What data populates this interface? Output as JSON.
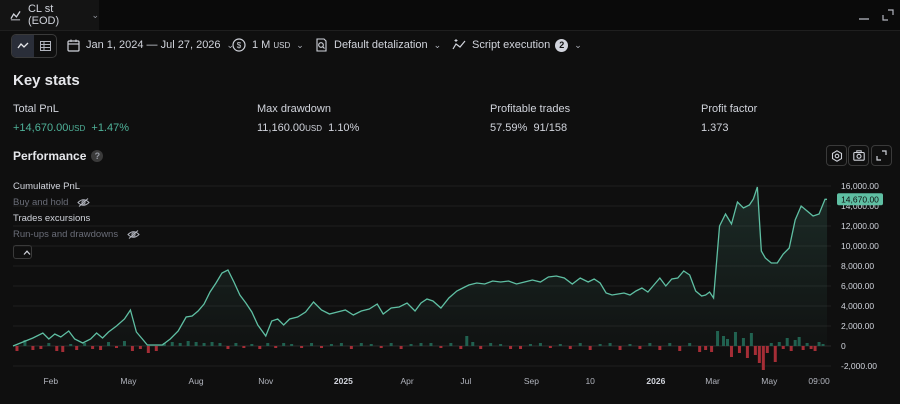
{
  "tab": {
    "title": "CL st (EOD)",
    "icon": "line-chart-icon"
  },
  "toolbar": {
    "date_range": "Jan 1, 2024 — Jul 27, 2026",
    "capital": "1 M",
    "capital_currency": "USD",
    "detalization": "Default detalization",
    "script_execution": "Script execution",
    "script_badge": "2"
  },
  "key_stats": {
    "title": "Key stats",
    "items": [
      {
        "label": "Total PnL",
        "value": "+14,670.00",
        "currency": "USD",
        "extra": "+1.47%"
      },
      {
        "label": "Max drawdown",
        "value": "11,160.00",
        "currency": "USD",
        "extra": "1.10%"
      },
      {
        "label": "Profitable trades",
        "value": "57.59%",
        "currency": "",
        "extra": "91/158"
      },
      {
        "label": "Profit factor",
        "value": "1.373",
        "currency": "",
        "extra": ""
      }
    ]
  },
  "performance": {
    "title": "Performance",
    "legend": [
      {
        "label": "Cumulative PnL",
        "active": true
      },
      {
        "label": "Buy and hold",
        "active": false
      },
      {
        "label": "Trades excursions",
        "active": true
      },
      {
        "label": "Run-ups and drawdowns",
        "active": false
      }
    ]
  },
  "colors": {
    "line": "#5fbfa3",
    "pos_bar": "#1f5f4e",
    "neg_bar": "#a52d36",
    "label_bg": "#5fbfa3"
  },
  "chart_data": {
    "type": "area",
    "ylim": [
      -3000,
      17000
    ],
    "yticks": [
      16000,
      14000,
      12000,
      10000,
      8000,
      6000,
      4000,
      2000,
      0,
      -2000
    ],
    "ytick_labels": [
      "16,000.00",
      "14,000.00",
      "12,000.00",
      "10,000.00",
      "8,000.00",
      "6,000.00",
      "4,000.00",
      "2,000.00",
      "0",
      "-2,000.00"
    ],
    "last_value": 14670,
    "last_value_label": "14,670.00",
    "xlim": [
      0,
      822
    ],
    "xticks": [
      {
        "x": 38,
        "label": "Feb",
        "year": false
      },
      {
        "x": 116,
        "label": "May",
        "year": false
      },
      {
        "x": 184,
        "label": "Aug",
        "year": false
      },
      {
        "x": 254,
        "label": "Nov",
        "year": false
      },
      {
        "x": 332,
        "label": "2025",
        "year": true
      },
      {
        "x": 396,
        "label": "Apr",
        "year": false
      },
      {
        "x": 455,
        "label": "Jul",
        "year": false
      },
      {
        "x": 521,
        "label": "Sep",
        "year": false
      },
      {
        "x": 580,
        "label": "10",
        "year": false
      },
      {
        "x": 646,
        "label": "2026",
        "year": true
      },
      {
        "x": 703,
        "label": "Mar",
        "year": false
      },
      {
        "x": 760,
        "label": "May",
        "year": false
      },
      {
        "x": 810,
        "label": "09:00",
        "year": false
      }
    ],
    "series": [
      {
        "name": "Cumulative PnL",
        "x": [
          0,
          10,
          20,
          30,
          36,
          42,
          48,
          56,
          62,
          70,
          78,
          84,
          90,
          96,
          104,
          112,
          118,
          124,
          130,
          135,
          142,
          150,
          158,
          166,
          174,
          180,
          186,
          192,
          198,
          204,
          210,
          216,
          222,
          228,
          234,
          240,
          246,
          254,
          260,
          266,
          272,
          278,
          286,
          294,
          302,
          310,
          318,
          326,
          334,
          342,
          350,
          358,
          366,
          372,
          380,
          388,
          396,
          404,
          410,
          416,
          422,
          430,
          438,
          446,
          452,
          458,
          466,
          474,
          482,
          490,
          498,
          506,
          514,
          522,
          530,
          538,
          546,
          554,
          562,
          570,
          578,
          584,
          590,
          596,
          602,
          608,
          614,
          620,
          626,
          632,
          638,
          644,
          650,
          656,
          662,
          668,
          674,
          680,
          686,
          692,
          696,
          700,
          704,
          710,
          716,
          722,
          728,
          734,
          740,
          744,
          748,
          752,
          756,
          762,
          768,
          774,
          780,
          786,
          792,
          798,
          804,
          810,
          816,
          818
        ],
        "y": [
          0,
          400,
          800,
          1300,
          700,
          1200,
          900,
          1500,
          700,
          300,
          700,
          1300,
          800,
          1400,
          2000,
          2700,
          3600,
          1400,
          700,
          100,
          100,
          100,
          700,
          1500,
          2900,
          3000,
          3500,
          4200,
          5400,
          6300,
          7300,
          7600,
          6400,
          5100,
          4300,
          3400,
          2100,
          1000,
          2500,
          2700,
          2100,
          2700,
          2900,
          3400,
          4400,
          3600,
          3200,
          3400,
          3600,
          3100,
          3500,
          3700,
          4200,
          3200,
          3800,
          3900,
          4300,
          3500,
          4300,
          4700,
          4500,
          3800,
          4800,
          5500,
          5800,
          6100,
          6300,
          6200,
          6500,
          6400,
          6500,
          6200,
          6400,
          6600,
          6400,
          6900,
          7000,
          6800,
          6200,
          6800,
          6400,
          6700,
          6300,
          5300,
          5100,
          5200,
          5300,
          5100,
          5500,
          5800,
          5400,
          6100,
          6800,
          6000,
          6700,
          6800,
          7500,
          7100,
          5500,
          5000,
          5100,
          5400,
          4800,
          12000,
          13200,
          12200,
          14400,
          13800,
          14100,
          14700,
          15900,
          9500,
          8800,
          8300,
          8300,
          9200,
          9800,
          12600,
          14000,
          13500,
          13000,
          13200,
          14670,
          14670
        ],
        "color": "#5fbfa3"
      },
      {
        "name": "Trades excursions",
        "x": [
          4,
          12,
          20,
          28,
          36,
          44,
          50,
          58,
          64,
          72,
          80,
          88,
          96,
          104,
          112,
          120,
          128,
          136,
          144,
          152,
          160,
          168,
          176,
          184,
          192,
          200,
          208,
          216,
          224,
          232,
          240,
          248,
          256,
          264,
          272,
          280,
          290,
          300,
          310,
          320,
          330,
          340,
          350,
          360,
          370,
          380,
          390,
          400,
          410,
          420,
          430,
          440,
          450,
          456,
          462,
          470,
          480,
          490,
          500,
          510,
          520,
          530,
          540,
          550,
          560,
          570,
          580,
          590,
          600,
          610,
          620,
          630,
          640,
          650,
          660,
          670,
          680,
          690,
          696,
          702,
          708,
          714,
          718,
          722,
          726,
          730,
          734,
          738,
          742,
          746,
          750,
          754,
          758,
          762,
          766,
          770,
          774,
          778,
          782,
          786,
          790,
          794,
          798,
          802,
          806,
          810,
          814
        ],
        "y": [
          -500,
          600,
          -400,
          -300,
          300,
          -500,
          -600,
          200,
          -400,
          300,
          -300,
          -400,
          400,
          -200,
          500,
          -500,
          -300,
          -700,
          -500,
          300,
          400,
          300,
          500,
          400,
          300,
          400,
          300,
          -300,
          300,
          -200,
          200,
          -300,
          300,
          -200,
          300,
          200,
          -200,
          300,
          -200,
          200,
          300,
          -300,
          300,
          200,
          -200,
          300,
          -300,
          200,
          300,
          300,
          -200,
          300,
          -300,
          1000,
          400,
          -300,
          300,
          200,
          -300,
          -300,
          200,
          300,
          -200,
          200,
          -300,
          300,
          -400,
          200,
          300,
          -400,
          200,
          -300,
          300,
          -400,
          300,
          -500,
          300,
          -600,
          -400,
          -600,
          1500,
          1000,
          700,
          -1100,
          1400,
          -700,
          800,
          -1200,
          1300,
          -900,
          -1700,
          -2400,
          -700,
          300,
          -1600,
          400,
          -300,
          800,
          -500,
          600,
          900,
          -400,
          300,
          -300,
          -500,
          400,
          200
        ],
        "color_pos": "#1f5f4e",
        "color_neg": "#a52d36"
      }
    ]
  }
}
